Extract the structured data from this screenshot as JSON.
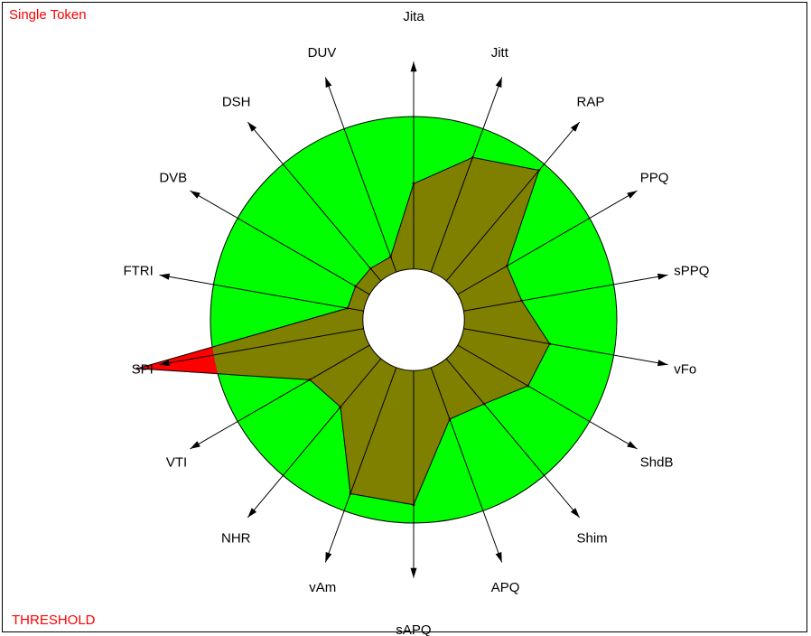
{
  "title": "Single Token",
  "footer": "THRESHOLD",
  "colors": {
    "label_red": "#ff0000",
    "normal_zone": "#00ff00",
    "measured_fill": "#808000",
    "exceed_fill": "#ff0000",
    "axis": "#000000"
  },
  "chart_data": {
    "type": "radar",
    "direction": "clockwise",
    "axes": [
      "Jita",
      "Jitt",
      "RAP",
      "PPQ",
      "sPPQ",
      "vFo",
      "ShdB",
      "Shim",
      "APQ",
      "sAPQ",
      "vAm",
      "NHR",
      "VTI",
      "SPI",
      "FTRI",
      "DVB",
      "DSH",
      "DUV"
    ],
    "scale": {
      "center_hole": 0.25,
      "threshold_ring": 1.0,
      "axis_end": 1.27
    },
    "series": [
      {
        "values": [
          0.67,
          0.85,
          0.96,
          0.53,
          0.54,
          0.68,
          0.65,
          0.54,
          0.52,
          0.91,
          0.91,
          0.56,
          0.59,
          1.38,
          0.33,
          0.33,
          0.33,
          0.33
        ]
      }
    ]
  }
}
